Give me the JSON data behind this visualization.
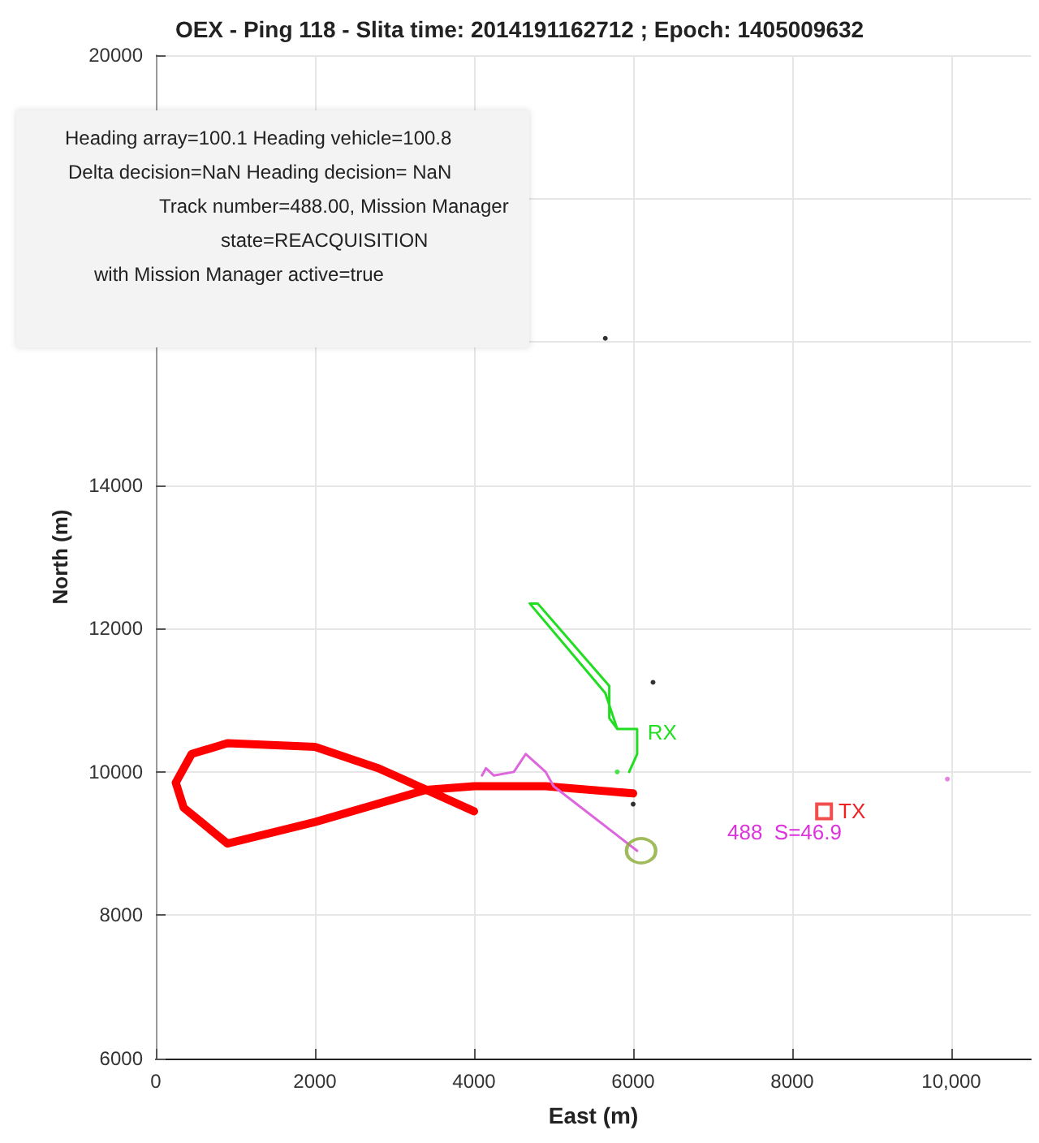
{
  "chart_data": {
    "type": "line",
    "title": "OEX - Ping 118 - Slita time: 2014191162712 ; Epoch: 1405009632",
    "xlabel": "East (m)",
    "ylabel": "North (m)",
    "xlim": [
      0,
      11000
    ],
    "xticks": [
      0,
      2000,
      4000,
      6000,
      8000,
      {
        "value": 10000,
        "label": "10,000"
      }
    ],
    "ylim": [
      6000,
      20000
    ],
    "yticks": [
      6000,
      8000,
      10000,
      12000,
      14000,
      {
        "value": 16000,
        "label": null
      },
      {
        "value": 18000,
        "label": null
      },
      20000
    ],
    "grid": true,
    "marker": "none",
    "series": [
      {
        "color": "#ff0000",
        "x": [
          4000,
          3400,
          2800,
          2000,
          900,
          450,
          250,
          350,
          900,
          2000,
          3400,
          4000,
          4900,
          6000
        ],
        "values": [
          9450,
          9750,
          10050,
          10350,
          10400,
          10250,
          9850,
          9500,
          9000,
          9300,
          9750,
          9800,
          9800,
          9700
        ]
      },
      {
        "color": "#22dd22",
        "x": [
          5950,
          6050,
          6050,
          5800,
          5650,
          4700,
          4800,
          5700,
          5700,
          5800,
          6050
        ],
        "values": [
          10000,
          10250,
          10600,
          10600,
          11100,
          12350,
          12350,
          11200,
          10750,
          10600,
          10600
        ]
      },
      {
        "color": "#dd66dd",
        "x": [
          4100,
          4150,
          4250,
          4500,
          4650,
          4900,
          5000,
          6050
        ],
        "values": [
          9950,
          10050,
          9950,
          10000,
          10250,
          10000,
          9800,
          8900
        ]
      },
      {
        "type": "scatter",
        "marker": "circle",
        "color": "#88aa33",
        "x": [
          6100
        ],
        "values": [
          8900
        ]
      },
      {
        "type": "scatter",
        "marker": "circle",
        "color": "#000000",
        "x": [
          5650,
          6250,
          6000
        ],
        "values": [
          16050,
          11250,
          9550
        ]
      },
      {
        "type": "scatter",
        "marker": "circle",
        "color": "#dd66dd",
        "x": [
          9950
        ],
        "values": [
          9900
        ]
      },
      {
        "type": "scatter",
        "marker": "circle",
        "color": "#22dd22",
        "x": [
          5800
        ],
        "values": [
          10000
        ]
      },
      {
        "type": "scatter",
        "marker": "square",
        "color": "#ee2222",
        "x": [
          8400
        ],
        "values": [
          9450
        ]
      }
    ],
    "annotations": [
      {
        "text": "RX",
        "x": 6100,
        "y": 10550
      },
      {
        "text": "TX",
        "x": 8500,
        "y": 9450
      },
      "488  S=46.9",
      "Heading array=100.1 Heading vehicle=100.8",
      "Delta decision=NaN Heading decision= NaN",
      "Track number=488.00, Mission Manager",
      "state=REACQUISITION",
      "with Mission Manager active=true"
    ]
  }
}
